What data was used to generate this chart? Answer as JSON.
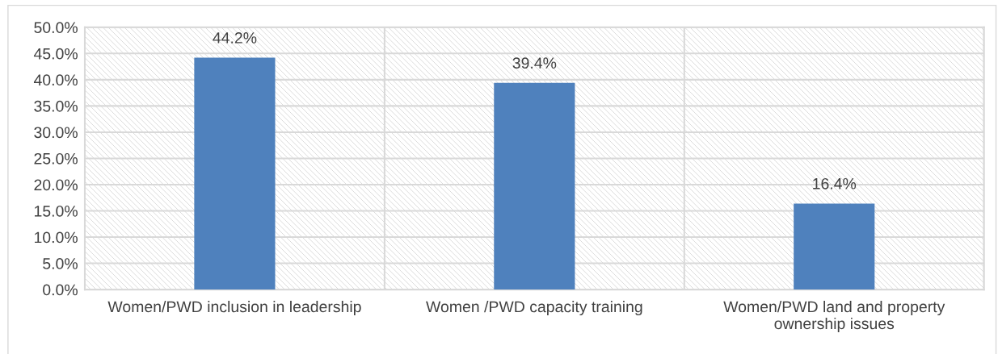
{
  "chart_data": {
    "type": "bar",
    "categories": [
      "Women/PWD inclusion in leadership",
      "Women /PWD capacity training",
      "Women/PWD land and property ownership issues"
    ],
    "values": [
      44.2,
      39.4,
      16.4
    ],
    "color": "#4f81bd",
    "value_labels": [
      "44.2%",
      "39.4%",
      "16.4%"
    ],
    "ylim": [
      0,
      50
    ],
    "yticks": [
      {
        "value": 0,
        "label": "0.0%"
      },
      {
        "value": 5,
        "label": "5.0%"
      },
      {
        "value": 10,
        "label": "10.0%"
      },
      {
        "value": 15,
        "label": "15.0%"
      },
      {
        "value": 20,
        "label": "20.0%"
      },
      {
        "value": 25,
        "label": "25.0%"
      },
      {
        "value": 30,
        "label": "30.0%"
      },
      {
        "value": 35,
        "label": "35.0%"
      },
      {
        "value": 40,
        "label": "40.0%"
      },
      {
        "value": 45,
        "label": "45.0%"
      },
      {
        "value": 50,
        "label": "50.0%"
      }
    ],
    "grid": true
  }
}
